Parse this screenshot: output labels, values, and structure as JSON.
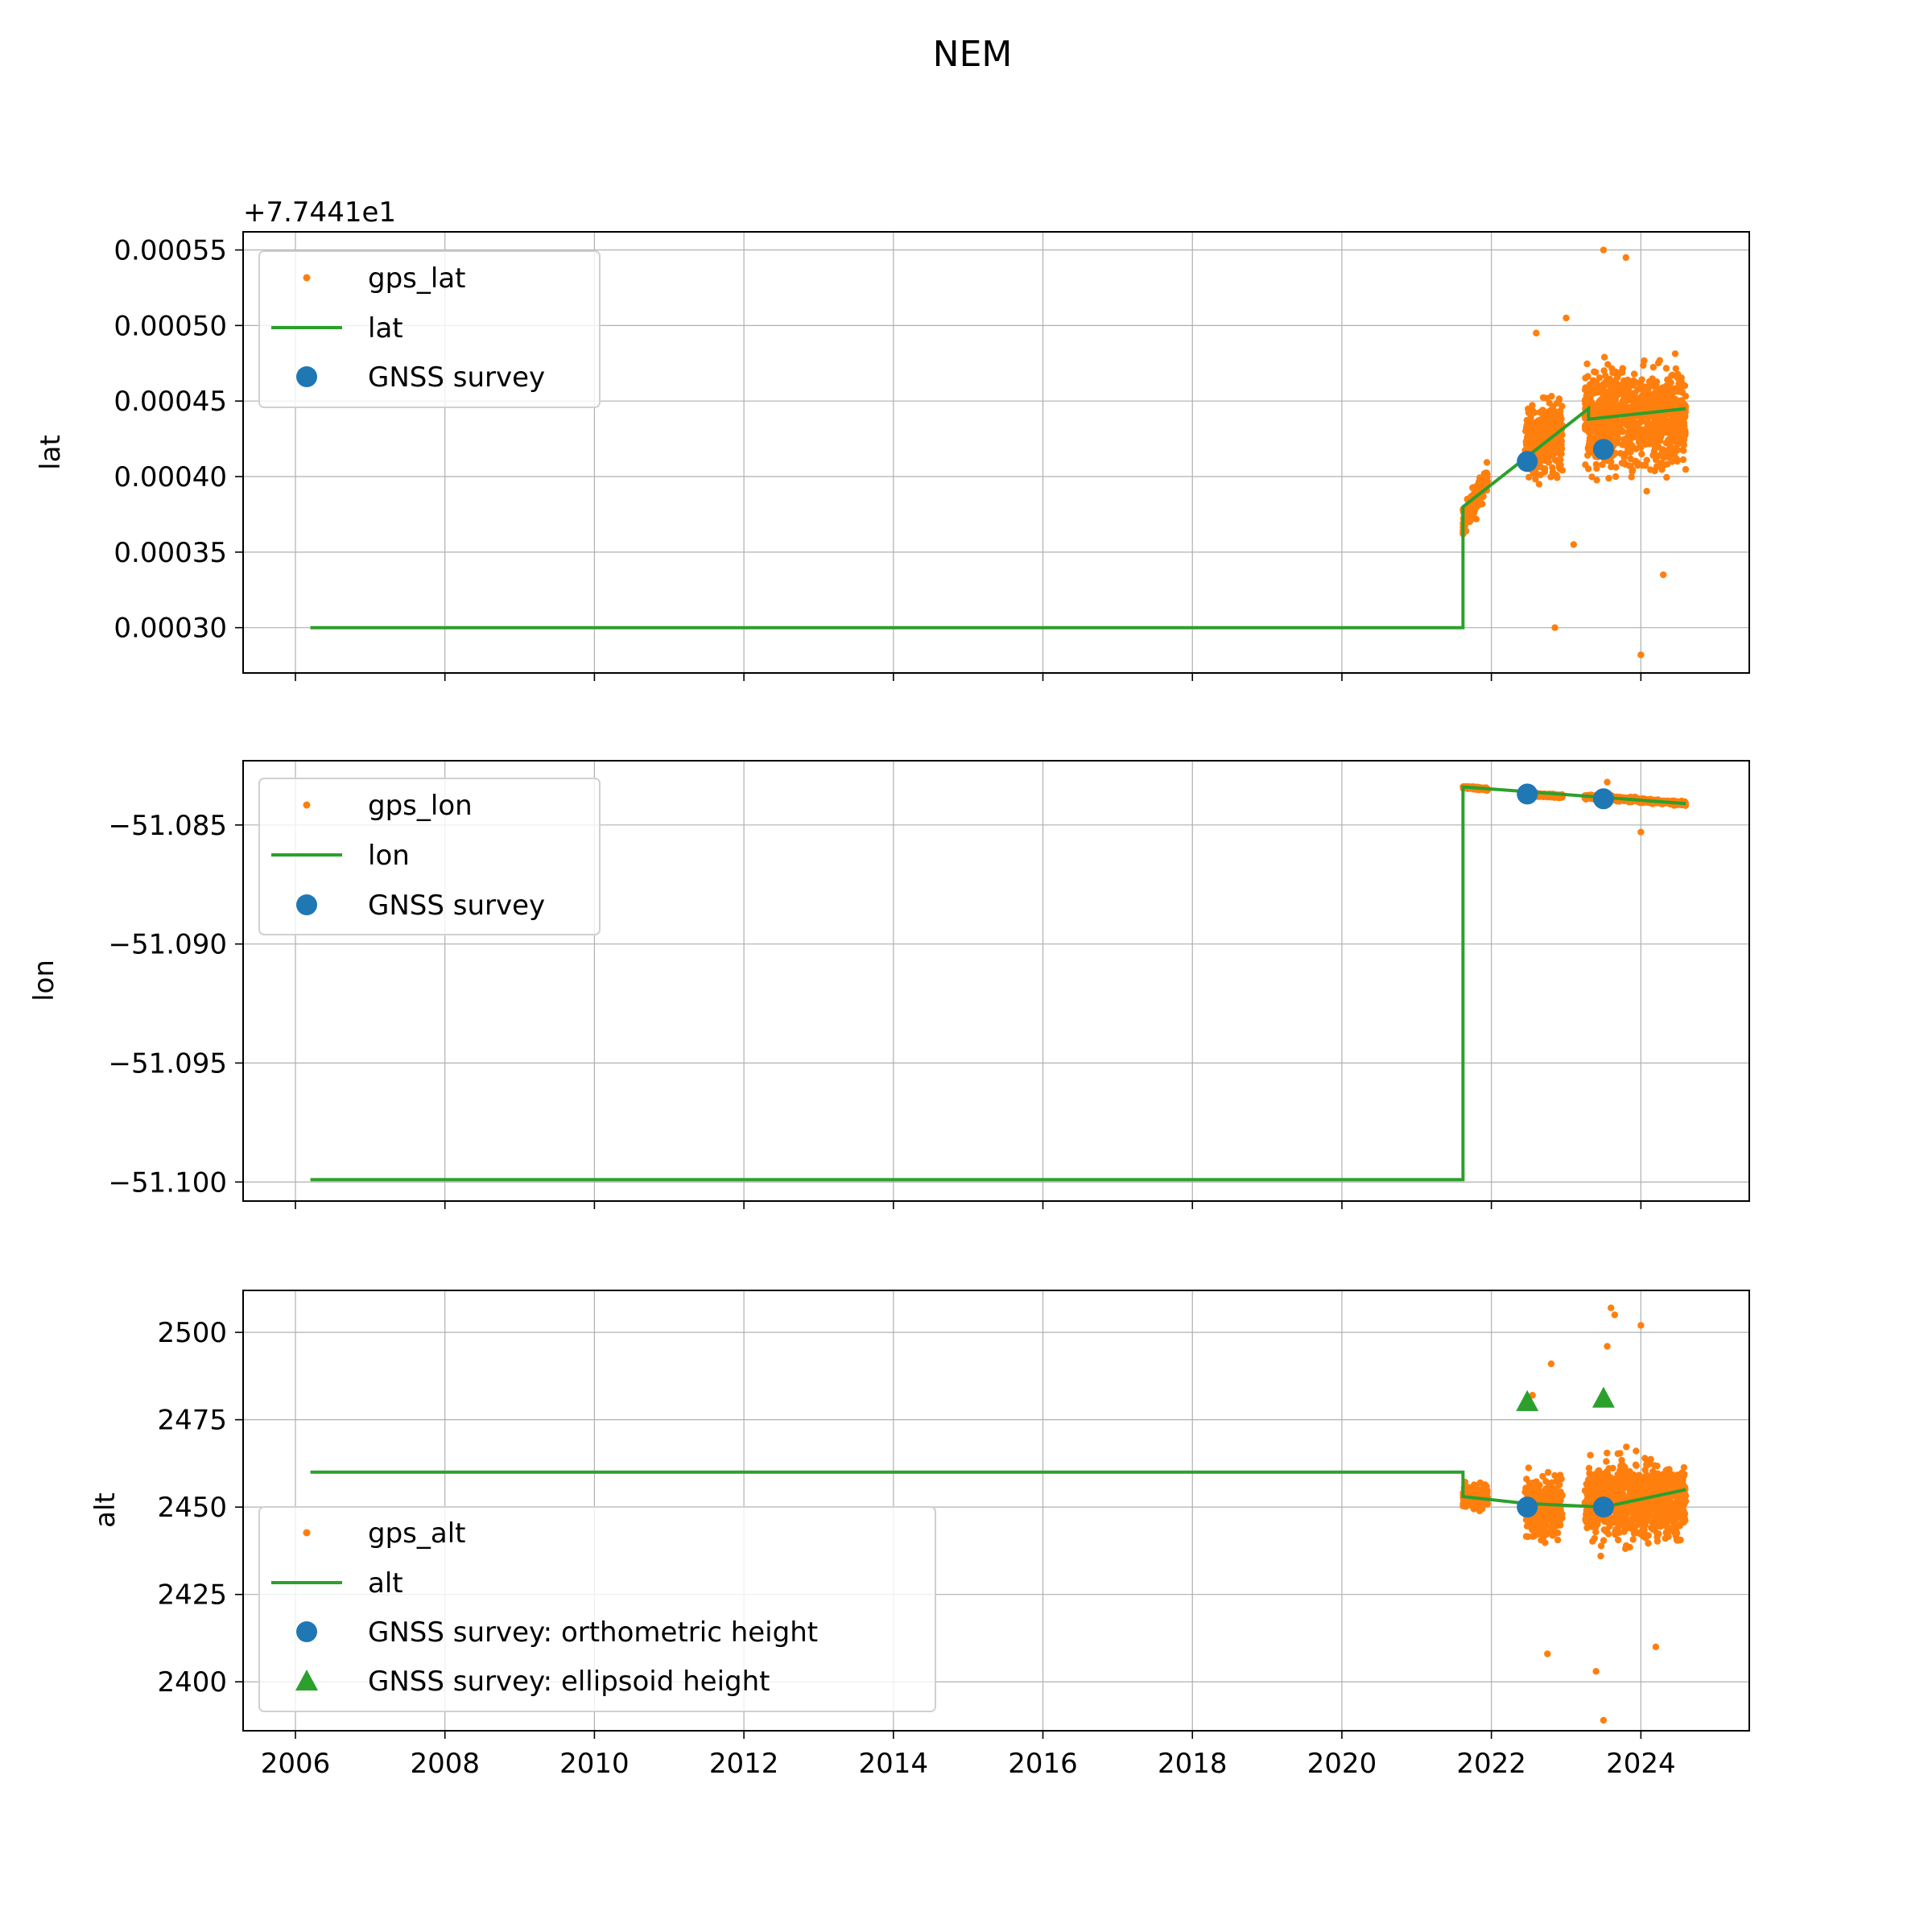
{
  "figure": {
    "title": "NEM",
    "xlim": [
      2005.3,
      2025.45
    ],
    "x_ticks": [
      "2006",
      "2008",
      "2010",
      "2012",
      "2014",
      "2016",
      "2018",
      "2020",
      "2022",
      "2024"
    ],
    "x_tick_values": [
      2006,
      2008,
      2010,
      2012,
      2014,
      2016,
      2018,
      2020,
      2022,
      2024
    ],
    "colors": {
      "gps": "#ff7f0e",
      "model": "#2ca02c",
      "survey": "#1f77b4",
      "ellipsoid": "#2ca02c",
      "grid": "#b0b0b0"
    }
  },
  "chart_data": [
    {
      "type": "scatter",
      "panel": "lat",
      "ylabel": "lat",
      "offset_label": "+7.7441e1",
      "offset": 77.441,
      "ylim": [
        0.00027,
        0.000562
      ],
      "y_ticks": [
        "0.00030",
        "0.00035",
        "0.00040",
        "0.00045",
        "0.00050",
        "0.00055"
      ],
      "y_tick_values": [
        0.0003,
        0.00035,
        0.0004,
        0.00045,
        0.0005,
        0.00055
      ],
      "legend": [
        "gps_lat",
        "lat",
        "GNSS survey"
      ],
      "legend_loc": "upper left",
      "model_line": {
        "name": "lat",
        "x": [
          2006.2,
          2021.62,
          2021.62,
          2023.3,
          2023.3,
          2024.6
        ],
        "y": [
          0.0003,
          0.0003,
          0.00038,
          0.000445,
          0.000438,
          0.000445
        ]
      },
      "survey": {
        "name": "GNSS survey",
        "x": [
          2022.48,
          2023.5
        ],
        "y": [
          0.00041,
          0.000418
        ]
      },
      "gps_clusters": [
        {
          "x_range": [
            2021.62,
            2021.95
          ],
          "center_start": 0.00037,
          "center_end": 0.0004,
          "spread": 1.2e-05
        },
        {
          "x_range": [
            2022.45,
            2022.95
          ],
          "center_start": 0.000425,
          "center_end": 0.000425,
          "spread": 3e-05
        },
        {
          "x_range": [
            2023.25,
            2024.6
          ],
          "center_start": 0.00044,
          "center_end": 0.00044,
          "spread": 4e-05
        }
      ],
      "gps_outliers": {
        "x": [
          2022.85,
          2024.0,
          2023.5,
          2023.0,
          2023.1,
          2024.3,
          2023.8,
          2022.6
        ],
        "y": [
          0.0003,
          0.000282,
          0.00055,
          0.000505,
          0.000355,
          0.000335,
          0.000545,
          0.000495
        ]
      }
    },
    {
      "type": "scatter",
      "panel": "lon",
      "ylabel": "lon",
      "ylim": [
        -51.1008,
        -51.0823
      ],
      "y_ticks": [
        "−51.100",
        "−51.095",
        "−51.090",
        "−51.085"
      ],
      "y_tick_values": [
        -51.1,
        -51.095,
        -51.09,
        -51.085
      ],
      "legend": [
        "gps_lon",
        "lon",
        "GNSS survey"
      ],
      "legend_loc": "upper left",
      "model_line": {
        "name": "lon",
        "x": [
          2006.2,
          2021.62,
          2021.62,
          2024.6
        ],
        "y": [
          -51.0999,
          -51.0999,
          -51.0834,
          -51.0841
        ]
      },
      "survey": {
        "name": "GNSS survey",
        "x": [
          2022.48,
          2023.5
        ],
        "y": [
          -51.0837,
          -51.0839
        ]
      },
      "gps_clusters": [
        {
          "x_range": [
            2021.62,
            2021.95
          ],
          "center_start": -51.0834,
          "center_end": -51.0835,
          "spread": 6e-05
        },
        {
          "x_range": [
            2022.45,
            2022.95
          ],
          "center_start": -51.0837,
          "center_end": -51.0838,
          "spread": 8e-05
        },
        {
          "x_range": [
            2023.25,
            2024.6
          ],
          "center_start": -51.0838,
          "center_end": -51.0841,
          "spread": 0.0001
        }
      ],
      "gps_outliers": {
        "x": [
          2024.0,
          2023.55
        ],
        "y": [
          -51.0853,
          -51.0832
        ]
      }
    },
    {
      "type": "scatter",
      "panel": "alt",
      "ylabel": "alt",
      "ylim": [
        2386,
        2512
      ],
      "y_ticks": [
        "2400",
        "2425",
        "2450",
        "2475",
        "2500"
      ],
      "y_tick_values": [
        2400,
        2425,
        2450,
        2475,
        2500
      ],
      "legend": [
        "gps_alt",
        "alt",
        "GNSS survey: orthometric height",
        "GNSS survey: ellipsoid height"
      ],
      "legend_loc": "lower left",
      "model_line": {
        "name": "alt",
        "x": [
          2006.2,
          2021.62,
          2021.62,
          2022.48,
          2023.5,
          2024.6
        ],
        "y": [
          2460,
          2460,
          2453,
          2451,
          2450,
          2455
        ]
      },
      "survey": {
        "name": "GNSS survey: orthometric height",
        "x": [
          2022.48,
          2023.5
        ],
        "y": [
          2450,
          2450
        ]
      },
      "ellipsoid": {
        "name": "GNSS survey: ellipsoid height",
        "x": [
          2022.48,
          2023.5
        ],
        "y": [
          2480,
          2481
        ]
      },
      "gps_clusters": [
        {
          "x_range": [
            2021.62,
            2021.95
          ],
          "center_start": 2453,
          "center_end": 2453,
          "spread": 4
        },
        {
          "x_range": [
            2022.45,
            2022.95
          ],
          "center_start": 2450,
          "center_end": 2450,
          "spread": 10
        },
        {
          "x_range": [
            2023.25,
            2024.6
          ],
          "center_start": 2452,
          "center_end": 2452,
          "spread": 13
        }
      ],
      "gps_outliers": {
        "x": [
          2023.6,
          2023.65,
          2024.0,
          2023.55,
          2022.55,
          2022.8,
          2024.2,
          2022.75,
          2023.5,
          2023.4
        ],
        "y": [
          2507,
          2505,
          2502,
          2496,
          2482,
          2491,
          2410,
          2408,
          2389,
          2403
        ]
      }
    }
  ]
}
